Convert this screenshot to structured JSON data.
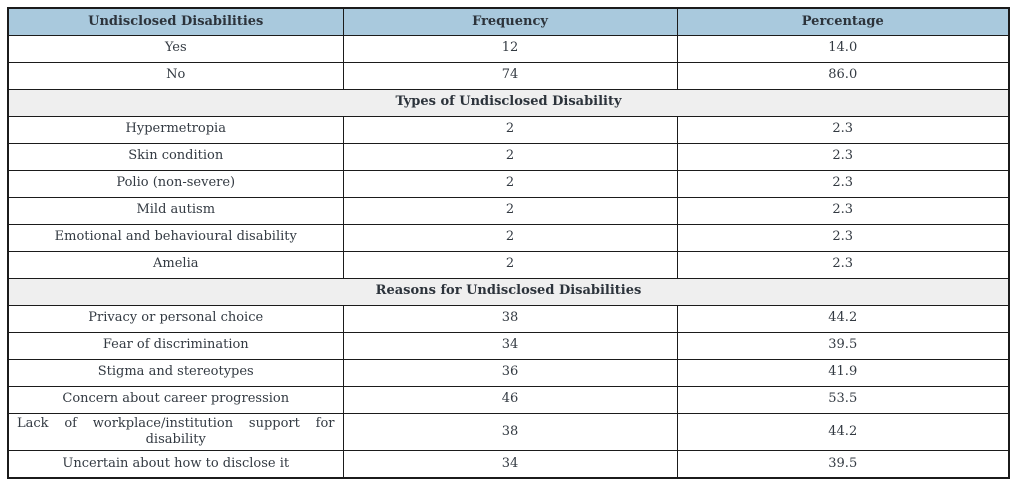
{
  "table": {
    "colors": {
      "header_background": "#a9c9dd",
      "section_background": "#efefef",
      "border": "#1b1b1b",
      "text": "#333a42"
    },
    "columns": [
      "Undisclosed Disabilities",
      "Frequency",
      "Percentage"
    ],
    "rows": [
      {
        "type": "data",
        "label": "Yes",
        "frequency": "12",
        "percentage": "14.0"
      },
      {
        "type": "data",
        "label": "No",
        "frequency": "74",
        "percentage": "86.0"
      },
      {
        "type": "section",
        "label": "Types of Undisclosed Disability"
      },
      {
        "type": "data",
        "label": "Hypermetropia",
        "frequency": "2",
        "percentage": "2.3"
      },
      {
        "type": "data",
        "label": "Skin condition",
        "frequency": "2",
        "percentage": "2.3"
      },
      {
        "type": "data",
        "label": "Polio (non-severe)",
        "frequency": "2",
        "percentage": "2.3"
      },
      {
        "type": "data",
        "label": "Mild autism",
        "frequency": "2",
        "percentage": "2.3"
      },
      {
        "type": "data",
        "label": "Emotional and behavioural disability",
        "frequency": "2",
        "percentage": "2.3"
      },
      {
        "type": "data",
        "label": "Amelia",
        "frequency": "2",
        "percentage": "2.3"
      },
      {
        "type": "section",
        "label": "Reasons for Undisclosed Disabilities"
      },
      {
        "type": "data",
        "label": "Privacy or personal choice",
        "frequency": "38",
        "percentage": "44.2"
      },
      {
        "type": "data",
        "label": "Fear of discrimination",
        "frequency": "34",
        "percentage": "39.5"
      },
      {
        "type": "data",
        "label": "Stigma and stereotypes",
        "frequency": "36",
        "percentage": "41.9"
      },
      {
        "type": "data",
        "label": "Concern about career progression",
        "frequency": "46",
        "percentage": "53.5"
      },
      {
        "type": "data",
        "label": "Lack of workplace/institution support for disability",
        "frequency": "38",
        "percentage": "44.2",
        "justify": true
      },
      {
        "type": "data",
        "label": "Uncertain about how to disclose it",
        "frequency": "34",
        "percentage": "39.5"
      }
    ]
  }
}
